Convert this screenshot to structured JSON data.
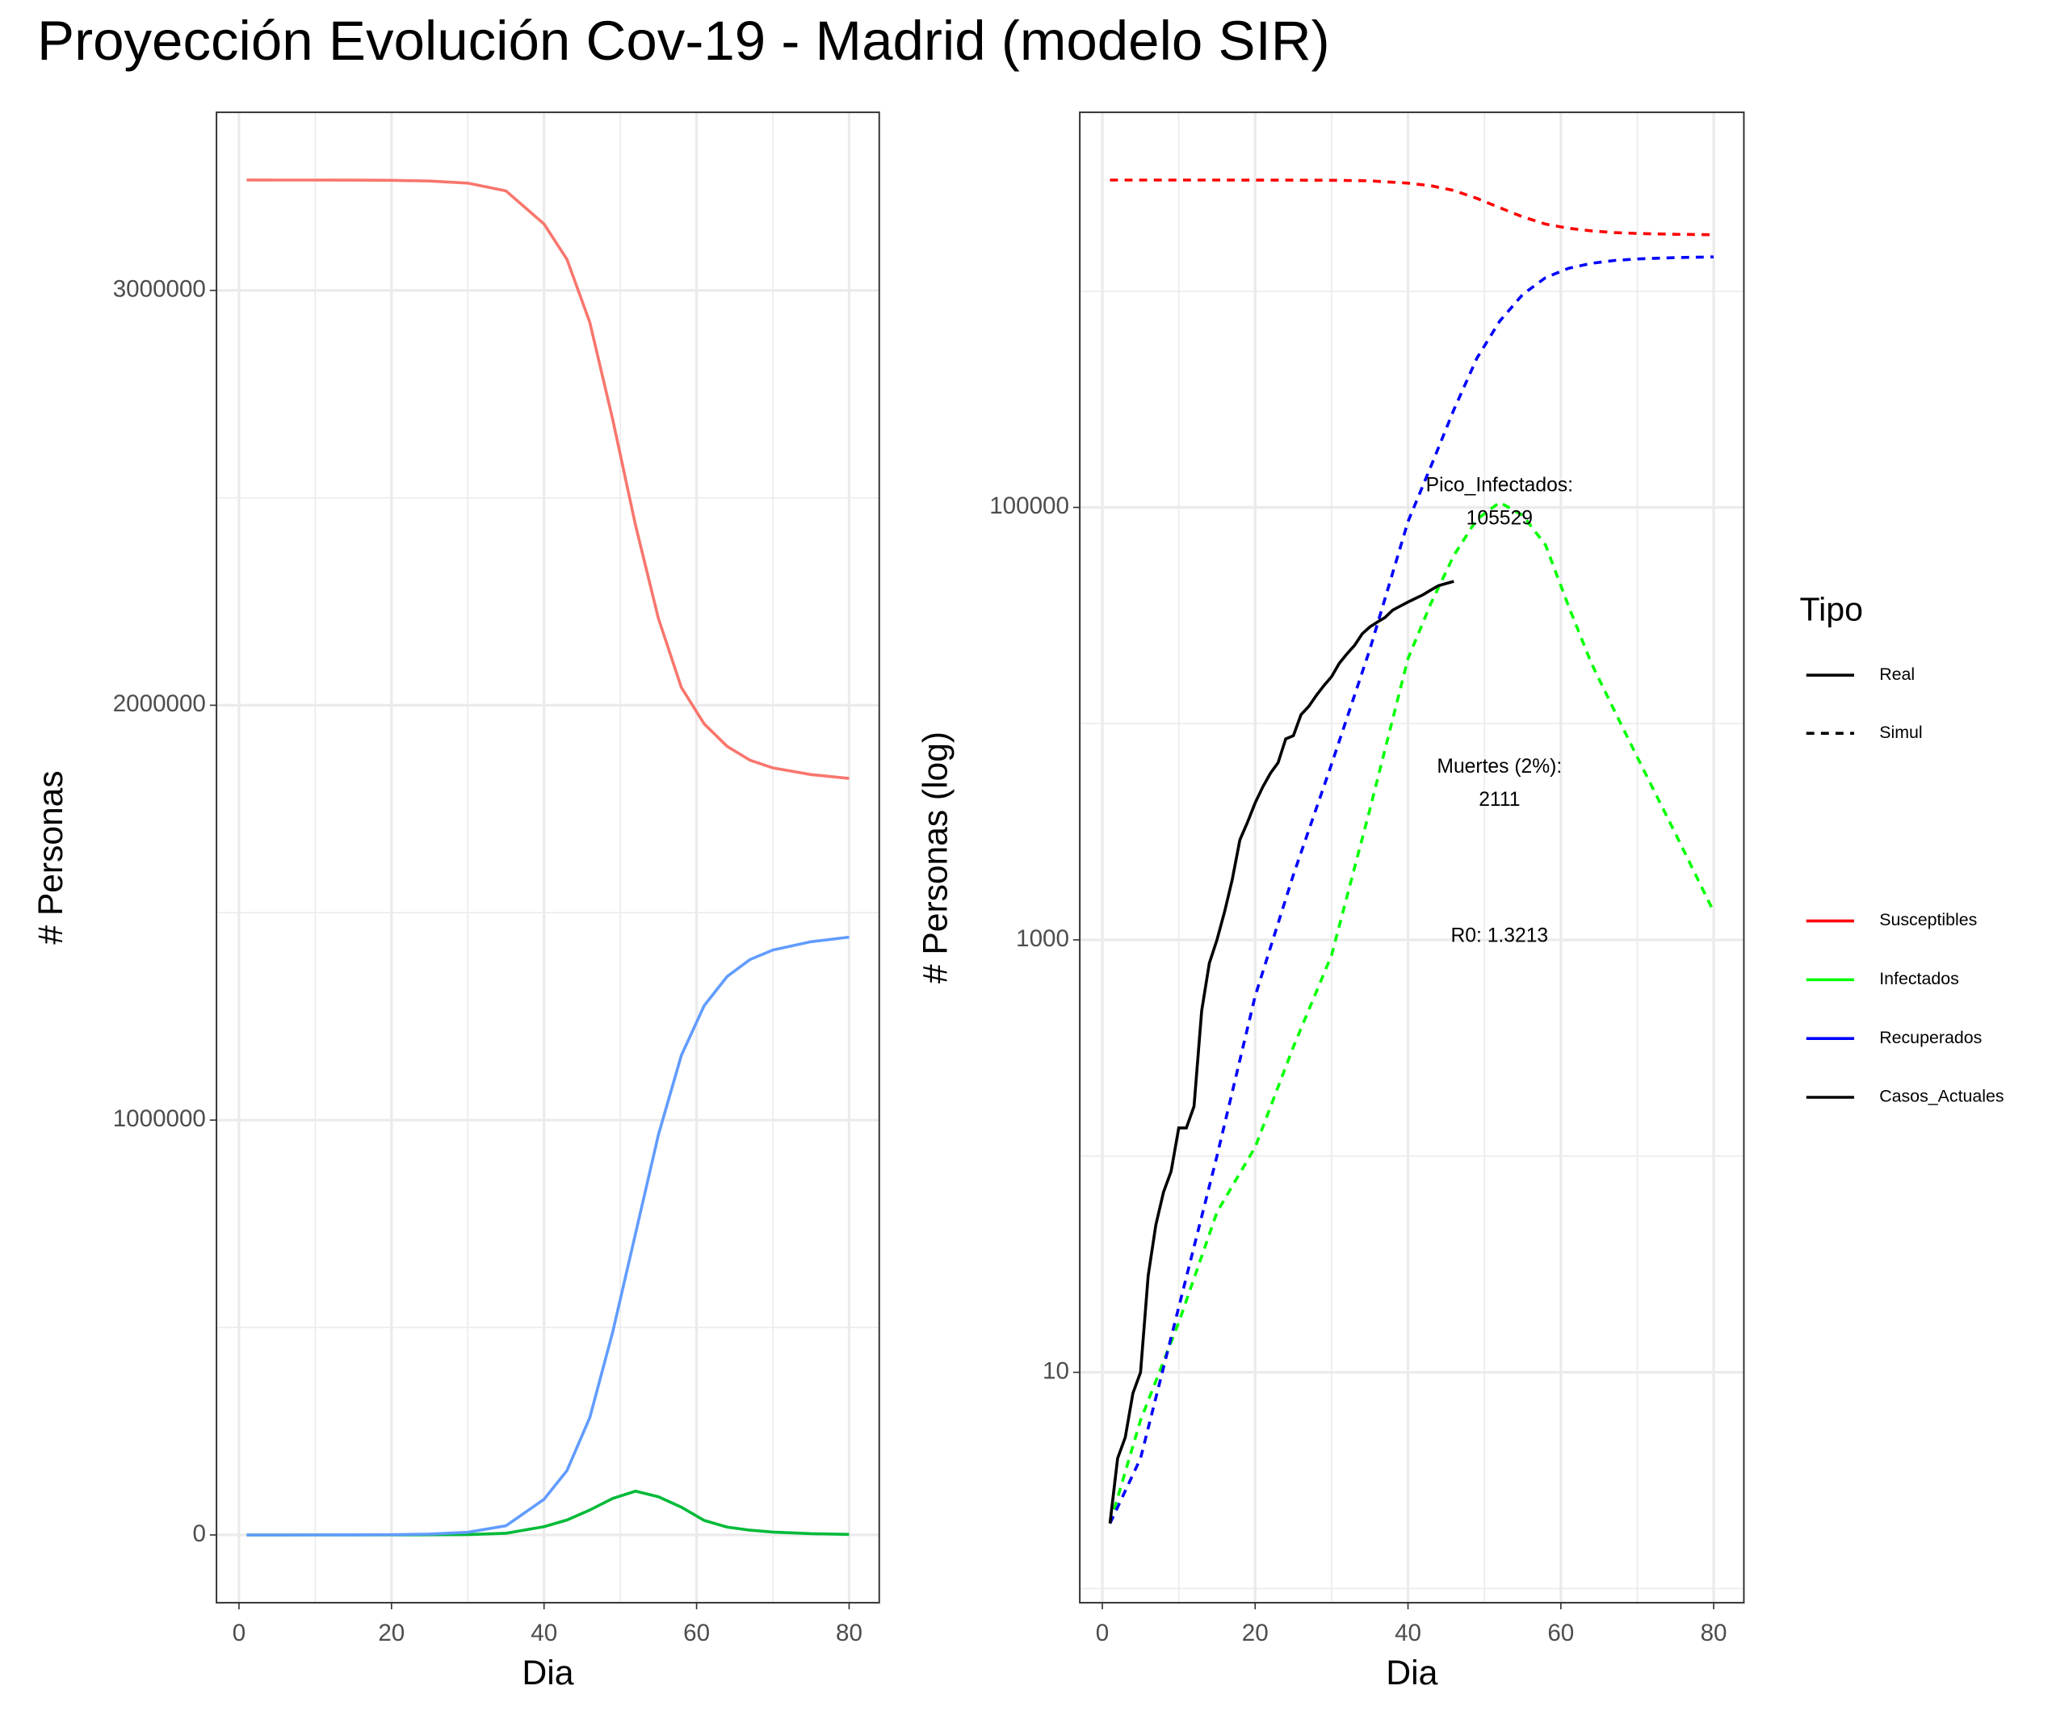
{
  "title": "Proyección Evolución Cov-19 - Madrid (modelo SIR)",
  "legend": {
    "title": "Tipo",
    "linetypes": [
      "Real",
      "Simul"
    ]
  },
  "chart_data": [
    {
      "type": "line",
      "x_label": "Dia",
      "y_label": "# Personas",
      "log_y": false,
      "grid": true,
      "xlim": [
        -2.95,
        83.95
      ],
      "xticks": [
        0,
        20,
        40,
        60,
        80
      ],
      "xminor": [
        10,
        30,
        50,
        70
      ],
      "ylim": [
        -163300,
        3429300
      ],
      "yticks": [
        0,
        1000000,
        2000000,
        3000000
      ],
      "yminor": [
        500000,
        1500000,
        2500000
      ],
      "x": [
        1,
        5,
        10,
        15,
        20,
        25,
        30,
        35,
        40,
        43,
        46,
        49,
        52,
        55,
        58,
        61,
        64,
        67,
        70,
        75,
        80
      ],
      "series": [
        {
          "color": "#F8766D",
          "values": [
            3265997,
            3265990,
            3265963,
            3265845,
            3265340,
            3263680,
            3258650,
            3240000,
            3160000,
            3075000,
            2923000,
            2689000,
            2433471,
            2209000,
            2043000,
            1955000,
            1901000,
            1867500,
            1849000,
            1832900,
            1823650
          ]
        },
        {
          "color": "#00BA38",
          "values": [
            2,
            6,
            17,
            55,
            110,
            320,
            850,
            4000,
            20000,
            36000,
            60000,
            88000,
            105529,
            92000,
            67000,
            35000,
            19000,
            11500,
            7000,
            3100,
            1350
          ]
        },
        {
          "color": "#619CFF",
          "values": [
            2,
            4,
            20,
            100,
            550,
            2000,
            6500,
            22000,
            86000,
            155000,
            283000,
            489000,
            727000,
            965000,
            1156000,
            1276000,
            1346000,
            1387000,
            1410000,
            1430000,
            1441000
          ]
        }
      ]
    },
    {
      "type": "line",
      "x_label": "Dia",
      "y_label": "# Personas (log)",
      "log_y": true,
      "grid": true,
      "xlim": [
        -2.95,
        83.95
      ],
      "xticks": [
        0,
        20,
        40,
        60,
        80
      ],
      "xminor": [
        10,
        30,
        50,
        70
      ],
      "ylim": [
        0.86,
        6720000
      ],
      "yticks": [
        10,
        1000,
        100000
      ],
      "yminor": [
        1,
        100,
        10000,
        1000000
      ],
      "x": [
        1,
        5,
        10,
        15,
        20,
        25,
        30,
        35,
        40,
        43,
        46,
        49,
        52,
        55,
        58,
        61,
        64,
        67,
        70,
        75,
        80
      ],
      "series": [
        {
          "name": "Susceptibles",
          "color": "#FF0000",
          "linetype": "Simul",
          "values": [
            3265997,
            3265990,
            3265963,
            3265845,
            3265340,
            3263680,
            3258650,
            3240000,
            3160000,
            3075000,
            2923000,
            2689000,
            2433471,
            2209000,
            2043000,
            1955000,
            1901000,
            1867500,
            1849000,
            1832900,
            1823650
          ]
        },
        {
          "name": "Infectados",
          "color": "#00FF00",
          "linetype": "Simul",
          "values": [
            2,
            6,
            17,
            55,
            110,
            320,
            850,
            4000,
            20000,
            36000,
            60000,
            88000,
            105529,
            92000,
            67000,
            35000,
            19000,
            11500,
            7000,
            3100,
            1350
          ]
        },
        {
          "name": "Recuperados",
          "color": "#0000FF",
          "linetype": "Simul",
          "values": [
            2,
            4,
            20,
            100,
            550,
            2000,
            6500,
            22000,
            86000,
            155000,
            283000,
            489000,
            727000,
            965000,
            1156000,
            1276000,
            1346000,
            1387000,
            1410000,
            1430000,
            1441000
          ]
        },
        {
          "name": "Casos_Actuales",
          "color": "#000000",
          "linetype": "Real",
          "x": [
            1,
            2,
            3,
            4,
            5,
            6,
            7,
            8,
            9,
            10,
            11,
            12,
            13,
            14,
            15,
            16,
            17,
            18,
            19,
            20,
            21,
            22,
            23,
            24,
            25,
            26,
            27,
            28,
            29,
            30,
            31,
            32,
            33,
            34,
            35,
            36,
            37,
            38,
            39,
            40,
            41,
            42,
            43,
            44,
            45,
            46
          ],
          "values": [
            2,
            4,
            5,
            8,
            10,
            28,
            48,
            68,
            85,
            135,
            135,
            170,
            470,
            780,
            1000,
            1350,
            1900,
            2900,
            3500,
            4300,
            5100,
            5900,
            6600,
            8500,
            8800,
            11000,
            12000,
            13500,
            15000,
            16500,
            19000,
            21000,
            23000,
            26000,
            28000,
            29500,
            31000,
            33500,
            35000,
            36500,
            38000,
            39500,
            41500,
            43500,
            44500,
            45500
          ]
        }
      ],
      "annotations": [
        {
          "lines": [
            "Pico_Infectados:",
            "105529"
          ]
        },
        {
          "lines": [
            "Muertes (2%):",
            "2111"
          ]
        },
        {
          "lines": [
            "R0: 1.3213"
          ]
        }
      ]
    }
  ]
}
